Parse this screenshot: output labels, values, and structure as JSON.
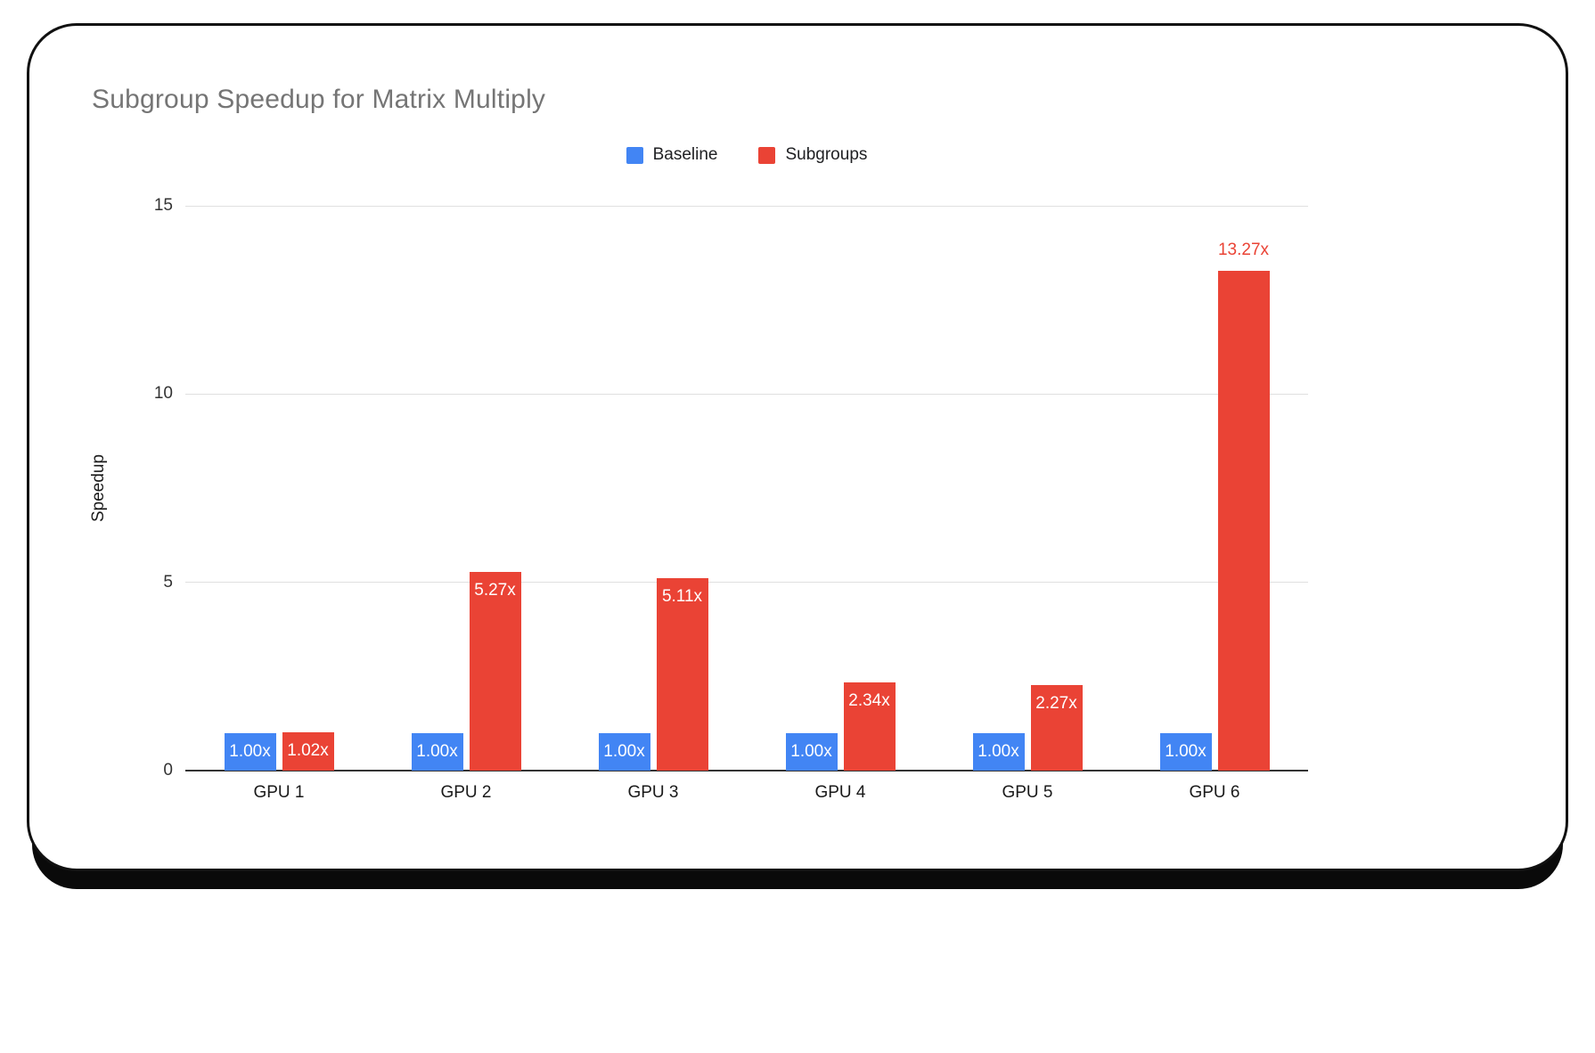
{
  "chart_data": {
    "type": "bar",
    "title": "Subgroup Speedup for Matrix Multiply",
    "ylabel": "Speedup",
    "xlabel": "",
    "categories": [
      "GPU 1",
      "GPU 2",
      "GPU 3",
      "GPU 4",
      "GPU 5",
      "GPU 6"
    ],
    "series": [
      {
        "name": "Baseline",
        "color": "#4285F4",
        "values": [
          1.0,
          1.0,
          1.0,
          1.0,
          1.0,
          1.0
        ],
        "labels": [
          "1.00x",
          "1.00x",
          "1.00x",
          "1.00x",
          "1.00x",
          "1.00x"
        ],
        "label_placement": [
          "inside",
          "inside",
          "inside",
          "inside",
          "inside",
          "inside"
        ]
      },
      {
        "name": "Subgroups",
        "color": "#EA4335",
        "values": [
          1.02,
          5.27,
          5.11,
          2.34,
          2.27,
          13.27
        ],
        "labels": [
          "1.02x",
          "5.27x",
          "5.11x",
          "2.34x",
          "2.27x",
          "13.27x"
        ],
        "label_placement": [
          "inside",
          "inside",
          "inside",
          "inside",
          "inside",
          "above"
        ]
      }
    ],
    "ylim": [
      0,
      15
    ],
    "yticks": [
      0,
      5,
      10,
      15
    ],
    "grid": true,
    "legend_position": "top",
    "inside_label_color": "#ffffff"
  },
  "styles": {
    "title_color": "#757575",
    "axis_text_color": "#333333",
    "grid_color": "#e0e0e0",
    "baseline_axis_color": "#333333"
  }
}
